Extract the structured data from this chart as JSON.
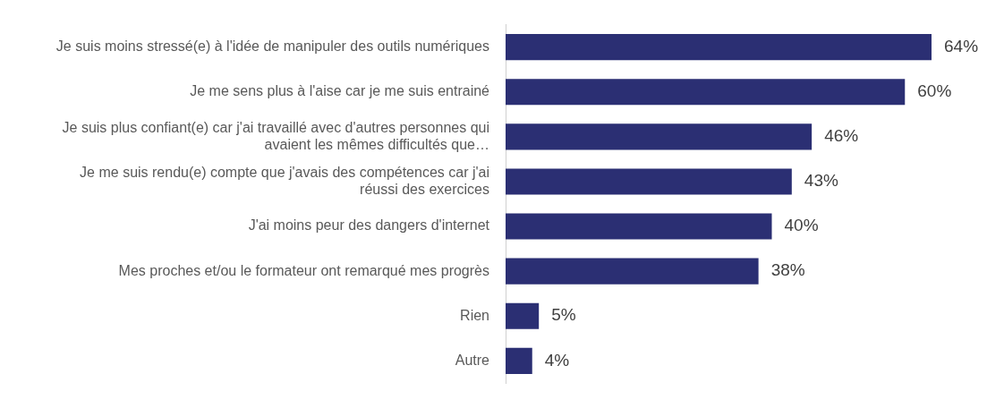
{
  "chart_data": {
    "type": "bar",
    "orientation": "horizontal",
    "categories": [
      "Je suis moins stressé(e) à l'idée de manipuler des outils numériques",
      "Je me sens plus à l'aise car je me suis entrainé",
      "Je suis plus confiant(e) car j'ai travaillé avec d'autres personnes qui avaient les mêmes difficultés que…",
      "Je me suis rendu(e) compte que j'avais des compétences car j'ai réussi des exercices",
      "J'ai moins peur des dangers d'internet",
      "Mes proches et/ou le formateur ont remarqué mes progrès",
      "Rien",
      "Autre"
    ],
    "values": [
      64,
      60,
      46,
      43,
      40,
      38,
      5,
      4
    ],
    "value_labels": [
      "64%",
      "60%",
      "46%",
      "43%",
      "40%",
      "38%",
      "5%",
      "4%"
    ],
    "color": "#2b2f73"
  }
}
